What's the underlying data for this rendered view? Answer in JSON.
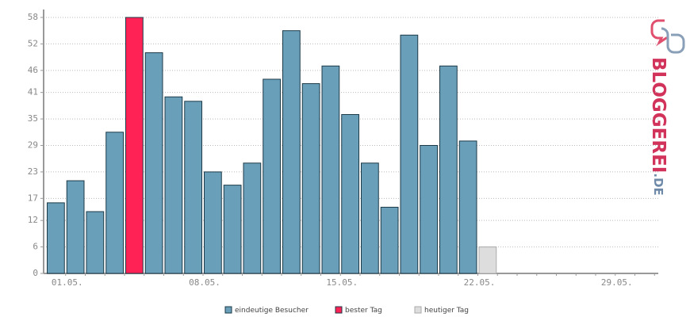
{
  "chart_data": {
    "type": "bar",
    "categories": [
      "01.05.",
      null,
      null,
      null,
      null,
      null,
      null,
      "08.05.",
      null,
      null,
      null,
      null,
      null,
      null,
      "15.05.",
      null,
      null,
      null,
      null,
      null,
      null,
      "22.05.",
      null,
      null,
      null,
      null,
      null,
      null,
      "29.05.",
      null,
      null
    ],
    "series": [
      {
        "name": "eindeutige Besucher",
        "color": "#6a9fba",
        "values": [
          16,
          21,
          14,
          32,
          null,
          50,
          40,
          39,
          23,
          20,
          25,
          44,
          55,
          43,
          47,
          36,
          25,
          15,
          54,
          29,
          47,
          30,
          null,
          null,
          null,
          null,
          null,
          null,
          null,
          null,
          null
        ]
      },
      {
        "name": "bester Tag",
        "color": "#ff2255",
        "values": [
          null,
          null,
          null,
          null,
          58,
          null,
          null,
          null,
          null,
          null,
          null,
          null,
          null,
          null,
          null,
          null,
          null,
          null,
          null,
          null,
          null,
          null,
          null,
          null,
          null,
          null,
          null,
          null,
          null,
          null,
          null
        ]
      },
      {
        "name": "heutiger Tag",
        "color": "#dddddd",
        "values": [
          null,
          null,
          null,
          null,
          null,
          null,
          null,
          null,
          null,
          null,
          null,
          null,
          null,
          null,
          null,
          null,
          null,
          null,
          null,
          null,
          null,
          null,
          6,
          null,
          null,
          null,
          null,
          null,
          null,
          null,
          null
        ]
      }
    ],
    "ylim": [
      0,
      58
    ],
    "yticks": [
      0,
      6,
      12,
      17,
      23,
      29,
      35,
      41,
      46,
      52,
      58
    ],
    "grid": true,
    "logo": {
      "main": "BLOGGEREI",
      "suffix": ".DE"
    }
  }
}
